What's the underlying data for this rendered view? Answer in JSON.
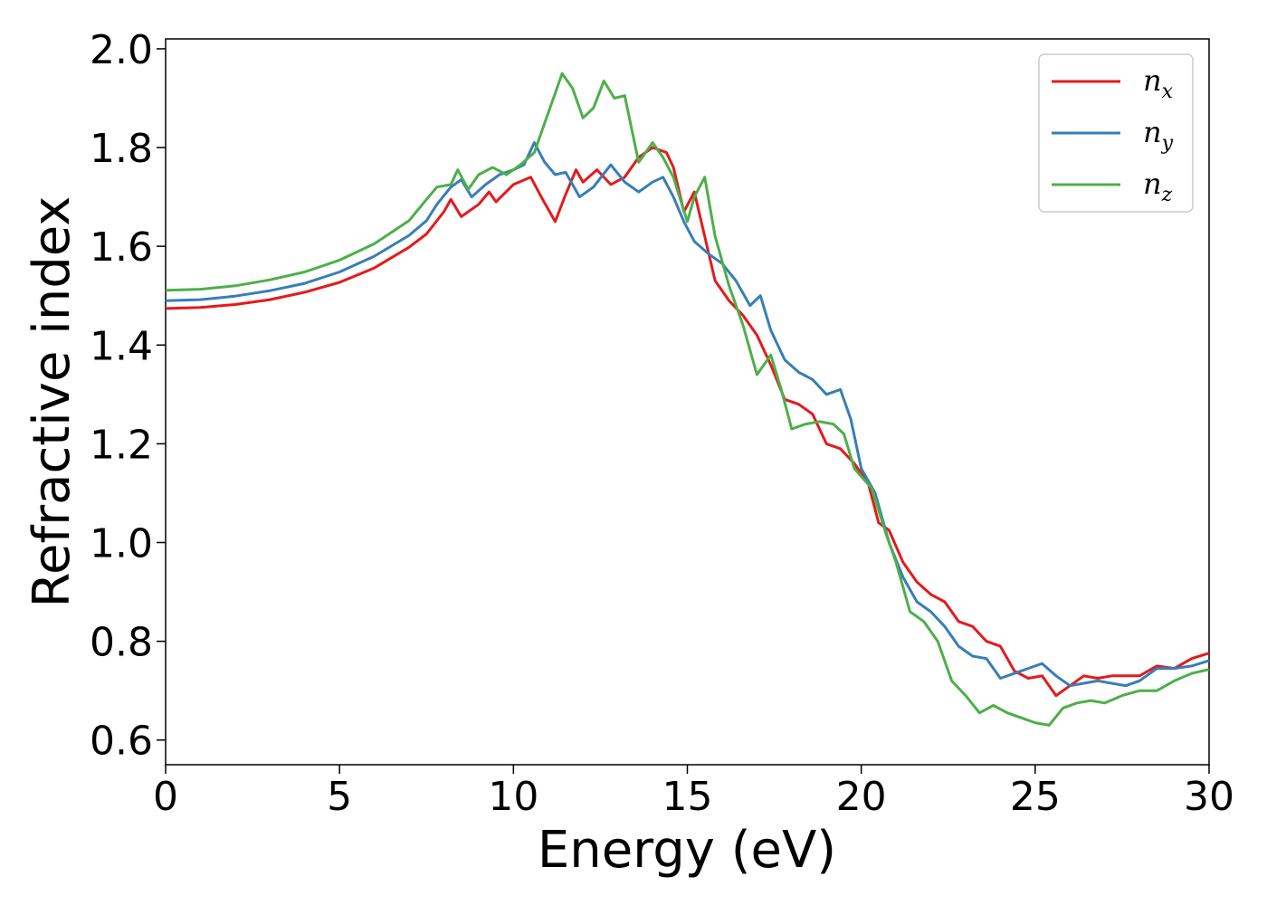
{
  "chart_data": {
    "type": "line",
    "title": "",
    "xlabel": "Energy (eV)",
    "ylabel": "Refractive index",
    "xlim": [
      0,
      30
    ],
    "ylim": [
      0.55,
      2.02
    ],
    "xticks": [
      0,
      5,
      10,
      15,
      20,
      25,
      30
    ],
    "yticks": [
      0.6,
      0.8,
      1.0,
      1.2,
      1.4,
      1.6,
      1.8,
      2.0
    ],
    "xtick_labels": [
      "0",
      "5",
      "10",
      "15",
      "20",
      "25",
      "30"
    ],
    "ytick_labels": [
      "0.6",
      "0.8",
      "1.0",
      "1.2",
      "1.4",
      "1.6",
      "1.8",
      "2.0"
    ],
    "grid": false,
    "legend_position": "top-right",
    "series": [
      {
        "name": "n_x",
        "legend_base": "n",
        "legend_sub": "x",
        "color": "#e41a1c",
        "points": [
          [
            0,
            1.474
          ],
          [
            1,
            1.476
          ],
          [
            2,
            1.482
          ],
          [
            3,
            1.492
          ],
          [
            4,
            1.507
          ],
          [
            5,
            1.527
          ],
          [
            6,
            1.556
          ],
          [
            7,
            1.598
          ],
          [
            7.5,
            1.625
          ],
          [
            8,
            1.67
          ],
          [
            8.2,
            1.695
          ],
          [
            8.5,
            1.66
          ],
          [
            9,
            1.685
          ],
          [
            9.3,
            1.71
          ],
          [
            9.5,
            1.69
          ],
          [
            10,
            1.725
          ],
          [
            10.5,
            1.74
          ],
          [
            10.8,
            1.7
          ],
          [
            11.2,
            1.65
          ],
          [
            11.5,
            1.705
          ],
          [
            11.8,
            1.755
          ],
          [
            12,
            1.73
          ],
          [
            12.4,
            1.755
          ],
          [
            12.8,
            1.725
          ],
          [
            13.2,
            1.74
          ],
          [
            13.6,
            1.78
          ],
          [
            14,
            1.8
          ],
          [
            14.4,
            1.79
          ],
          [
            14.6,
            1.76
          ],
          [
            14.9,
            1.67
          ],
          [
            15.2,
            1.71
          ],
          [
            15.5,
            1.62
          ],
          [
            15.8,
            1.53
          ],
          [
            16.2,
            1.49
          ],
          [
            16.6,
            1.46
          ],
          [
            17,
            1.42
          ],
          [
            17.4,
            1.36
          ],
          [
            17.8,
            1.29
          ],
          [
            18.2,
            1.28
          ],
          [
            18.6,
            1.26
          ],
          [
            19,
            1.2
          ],
          [
            19.4,
            1.19
          ],
          [
            19.8,
            1.16
          ],
          [
            20.2,
            1.12
          ],
          [
            20.5,
            1.04
          ],
          [
            20.8,
            1.025
          ],
          [
            21.2,
            0.96
          ],
          [
            21.6,
            0.92
          ],
          [
            22,
            0.895
          ],
          [
            22.4,
            0.88
          ],
          [
            22.8,
            0.84
          ],
          [
            23.2,
            0.83
          ],
          [
            23.6,
            0.8
          ],
          [
            24,
            0.79
          ],
          [
            24.4,
            0.74
          ],
          [
            24.8,
            0.725
          ],
          [
            25.2,
            0.73
          ],
          [
            25.6,
            0.69
          ],
          [
            26,
            0.71
          ],
          [
            26.4,
            0.73
          ],
          [
            26.8,
            0.725
          ],
          [
            27.2,
            0.73
          ],
          [
            27.6,
            0.73
          ],
          [
            28,
            0.73
          ],
          [
            28.5,
            0.75
          ],
          [
            29,
            0.745
          ],
          [
            29.5,
            0.765
          ],
          [
            30,
            0.776
          ]
        ]
      },
      {
        "name": "n_y",
        "legend_base": "n",
        "legend_sub": "y",
        "color": "#377eb8",
        "points": [
          [
            0,
            1.49
          ],
          [
            1,
            1.492
          ],
          [
            2,
            1.499
          ],
          [
            3,
            1.51
          ],
          [
            4,
            1.525
          ],
          [
            5,
            1.548
          ],
          [
            6,
            1.58
          ],
          [
            7,
            1.622
          ],
          [
            7.5,
            1.652
          ],
          [
            7.8,
            1.685
          ],
          [
            8.2,
            1.72
          ],
          [
            8.5,
            1.735
          ],
          [
            8.8,
            1.7
          ],
          [
            9.2,
            1.725
          ],
          [
            9.6,
            1.745
          ],
          [
            10,
            1.755
          ],
          [
            10.3,
            1.765
          ],
          [
            10.6,
            1.81
          ],
          [
            10.9,
            1.77
          ],
          [
            11.2,
            1.745
          ],
          [
            11.5,
            1.75
          ],
          [
            11.9,
            1.7
          ],
          [
            12.3,
            1.72
          ],
          [
            12.8,
            1.765
          ],
          [
            13.2,
            1.73
          ],
          [
            13.6,
            1.71
          ],
          [
            14,
            1.73
          ],
          [
            14.3,
            1.74
          ],
          [
            14.6,
            1.7
          ],
          [
            14.9,
            1.65
          ],
          [
            15.2,
            1.61
          ],
          [
            15.6,
            1.585
          ],
          [
            16,
            1.565
          ],
          [
            16.4,
            1.53
          ],
          [
            16.8,
            1.48
          ],
          [
            17.1,
            1.5
          ],
          [
            17.4,
            1.43
          ],
          [
            17.8,
            1.37
          ],
          [
            18.2,
            1.345
          ],
          [
            18.6,
            1.33
          ],
          [
            19,
            1.3
          ],
          [
            19.4,
            1.31
          ],
          [
            19.7,
            1.25
          ],
          [
            20,
            1.15
          ],
          [
            20.4,
            1.1
          ],
          [
            20.8,
            1.0
          ],
          [
            21.2,
            0.93
          ],
          [
            21.6,
            0.88
          ],
          [
            22,
            0.86
          ],
          [
            22.4,
            0.83
          ],
          [
            22.8,
            0.79
          ],
          [
            23.2,
            0.77
          ],
          [
            23.6,
            0.765
          ],
          [
            24,
            0.725
          ],
          [
            24.4,
            0.735
          ],
          [
            24.8,
            0.745
          ],
          [
            25.2,
            0.755
          ],
          [
            25.6,
            0.73
          ],
          [
            26,
            0.71
          ],
          [
            26.4,
            0.715
          ],
          [
            26.8,
            0.72
          ],
          [
            27.2,
            0.715
          ],
          [
            27.6,
            0.71
          ],
          [
            28,
            0.72
          ],
          [
            28.5,
            0.745
          ],
          [
            29,
            0.745
          ],
          [
            29.5,
            0.75
          ],
          [
            30,
            0.761
          ]
        ]
      },
      {
        "name": "n_z",
        "legend_base": "n",
        "legend_sub": "z",
        "color": "#4daf4a",
        "points": [
          [
            0,
            1.511
          ],
          [
            1,
            1.513
          ],
          [
            2,
            1.52
          ],
          [
            3,
            1.532
          ],
          [
            4,
            1.548
          ],
          [
            5,
            1.572
          ],
          [
            6,
            1.605
          ],
          [
            7,
            1.652
          ],
          [
            7.5,
            1.695
          ],
          [
            7.8,
            1.72
          ],
          [
            8.2,
            1.725
          ],
          [
            8.4,
            1.755
          ],
          [
            8.7,
            1.715
          ],
          [
            9,
            1.745
          ],
          [
            9.4,
            1.76
          ],
          [
            9.8,
            1.745
          ],
          [
            10.2,
            1.765
          ],
          [
            10.6,
            1.79
          ],
          [
            10.9,
            1.85
          ],
          [
            11.2,
            1.91
          ],
          [
            11.4,
            1.95
          ],
          [
            11.7,
            1.92
          ],
          [
            12,
            1.86
          ],
          [
            12.3,
            1.88
          ],
          [
            12.6,
            1.935
          ],
          [
            12.9,
            1.9
          ],
          [
            13.2,
            1.905
          ],
          [
            13.6,
            1.77
          ],
          [
            14,
            1.81
          ],
          [
            14.3,
            1.78
          ],
          [
            14.6,
            1.74
          ],
          [
            15,
            1.65
          ],
          [
            15.2,
            1.7
          ],
          [
            15.5,
            1.74
          ],
          [
            15.8,
            1.62
          ],
          [
            16.2,
            1.52
          ],
          [
            16.6,
            1.44
          ],
          [
            17,
            1.34
          ],
          [
            17.4,
            1.38
          ],
          [
            17.7,
            1.31
          ],
          [
            18,
            1.23
          ],
          [
            18.4,
            1.24
          ],
          [
            18.8,
            1.245
          ],
          [
            19.2,
            1.24
          ],
          [
            19.5,
            1.22
          ],
          [
            19.8,
            1.15
          ],
          [
            20.3,
            1.11
          ],
          [
            20.7,
            1.02
          ],
          [
            21,
            0.96
          ],
          [
            21.4,
            0.86
          ],
          [
            21.8,
            0.84
          ],
          [
            22.2,
            0.8
          ],
          [
            22.6,
            0.72
          ],
          [
            23,
            0.69
          ],
          [
            23.4,
            0.655
          ],
          [
            23.8,
            0.67
          ],
          [
            24.2,
            0.655
          ],
          [
            24.6,
            0.645
          ],
          [
            25,
            0.635
          ],
          [
            25.4,
            0.63
          ],
          [
            25.8,
            0.665
          ],
          [
            26.2,
            0.675
          ],
          [
            26.6,
            0.68
          ],
          [
            27,
            0.675
          ],
          [
            27.5,
            0.69
          ],
          [
            28,
            0.7
          ],
          [
            28.5,
            0.7
          ],
          [
            29,
            0.72
          ],
          [
            29.5,
            0.735
          ],
          [
            30,
            0.743
          ]
        ]
      }
    ]
  }
}
